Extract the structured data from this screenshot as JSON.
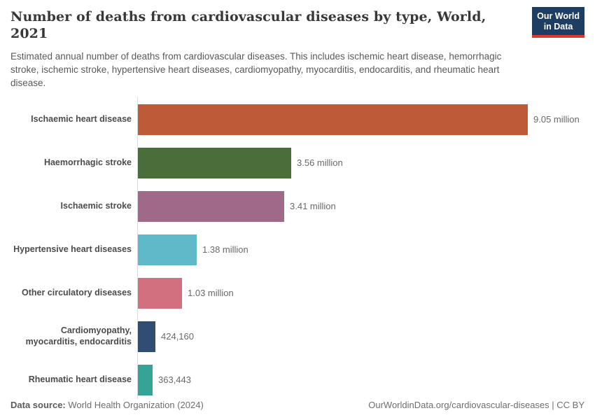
{
  "header": {
    "title": "Number of deaths from cardiovascular diseases by type, World, 2021",
    "subtitle": "Estimated annual number of deaths from cardiovascular diseases. This includes ischemic heart disease, hemorrhagic stroke, ischemic stroke, hypertensive heart diseases, cardiomyopathy, myocarditis, endocarditis, and rheumatic heart disease.",
    "logo_line1": "Our World",
    "logo_line2": "in Data",
    "logo_bg_color": "#1D3D63",
    "logo_accent_color": "#D73C34"
  },
  "chart_data": {
    "type": "bar",
    "orientation": "horizontal",
    "title": "Number of deaths from cardiovascular diseases by type, World, 2021",
    "categories": [
      "Ischaemic heart disease",
      "Haemorrhagic stroke",
      "Ischaemic stroke",
      "Hypertensive heart diseases",
      "Other circulatory diseases",
      "Cardiomyopathy, myocarditis, endocarditis",
      "Rheumatic heart disease"
    ],
    "values": [
      9050000,
      3560000,
      3410000,
      1380000,
      1030000,
      424160,
      363443
    ],
    "value_labels": [
      "9.05 million",
      "3.56 million",
      "3.41 million",
      "1.38 million",
      "1.03 million",
      "424,160",
      "363,443"
    ],
    "bar_colors": [
      "#BF5A38",
      "#4A6E3A",
      "#A0698A",
      "#5FB9C8",
      "#D27080",
      "#304D74",
      "#35A396"
    ],
    "xlim": [
      0,
      9050000
    ],
    "grid": false,
    "legend": "none"
  },
  "footer": {
    "source_label": "Data source:",
    "source_value": "World Health Organization (2024)",
    "credit": "OurWorldinData.org/cardiovascular-diseases | CC BY"
  }
}
